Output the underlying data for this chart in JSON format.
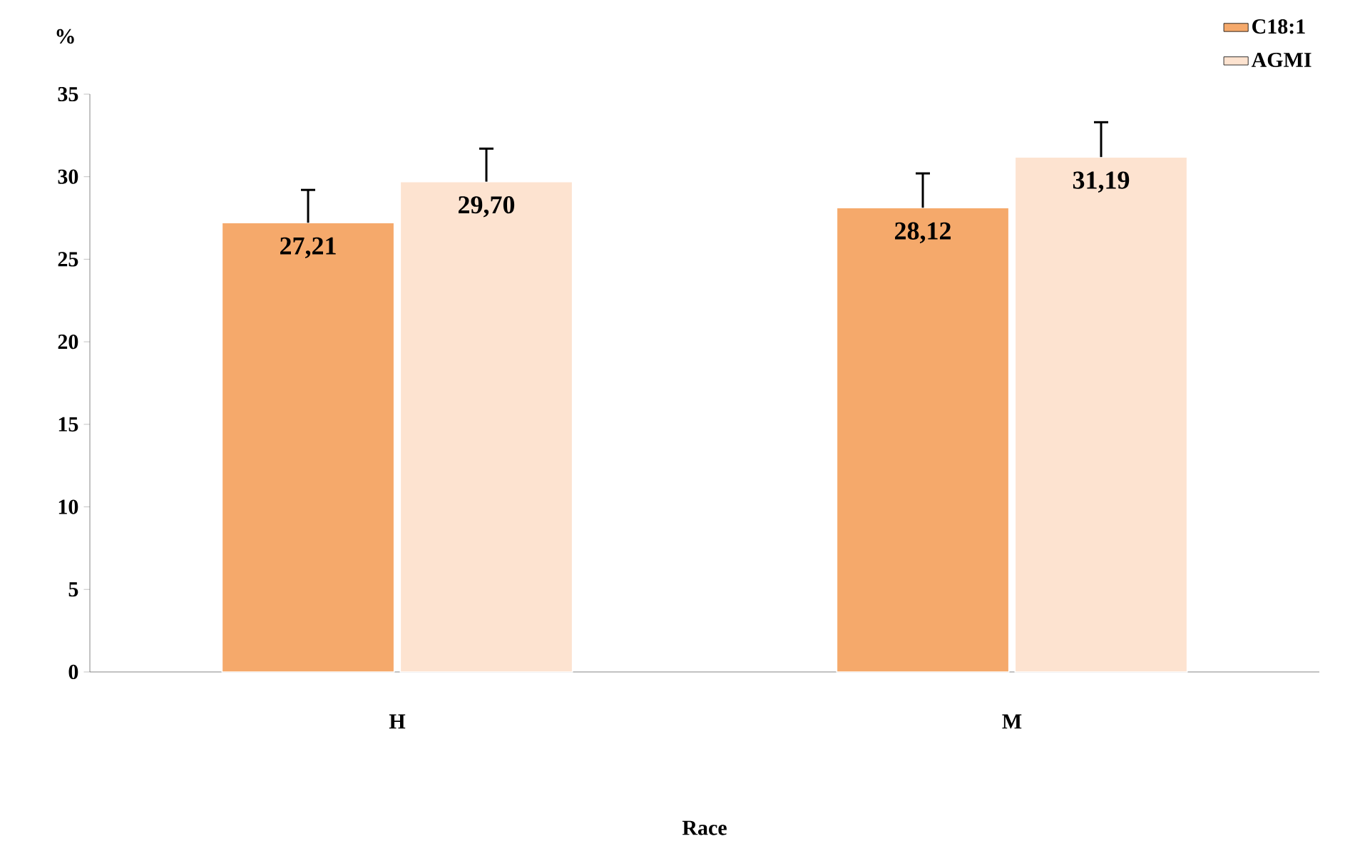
{
  "chart_data": {
    "type": "bar",
    "ylabel": "%",
    "xlabel": "Race",
    "categories": [
      "H",
      "M"
    ],
    "series": [
      {
        "name": "C18:1",
        "color": "#f5a96b",
        "values": [
          27.21,
          28.12
        ],
        "value_labels": [
          "27,21",
          "28,12"
        ],
        "errors": [
          [
            27.21,
            29.2
          ],
          [
            28.12,
            30.2
          ]
        ]
      },
      {
        "name": "AGMI",
        "color": "#fde3d0",
        "values": [
          29.7,
          31.19
        ],
        "value_labels": [
          "29,70",
          "31,19"
        ],
        "errors": [
          [
            29.7,
            31.7
          ],
          [
            31.19,
            33.3
          ]
        ]
      }
    ],
    "ylim": [
      0,
      35
    ],
    "yticks": [
      0,
      5,
      10,
      15,
      20,
      25,
      30,
      35
    ],
    "legend": "top right",
    "grid": false
  }
}
